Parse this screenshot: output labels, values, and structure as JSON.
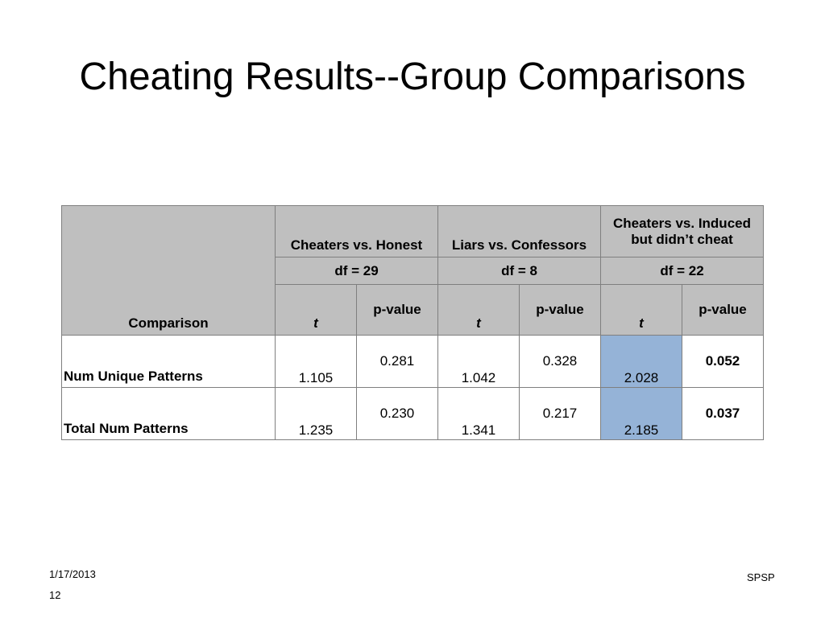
{
  "slide": {
    "title": "Cheating Results--Group Comparisons",
    "date": "1/17/2013",
    "page_number": "12",
    "footer_right": "SPSP"
  },
  "table": {
    "comparison_header": "Comparison",
    "groups": [
      {
        "label": "Cheaters vs. Honest",
        "df": "df = 29"
      },
      {
        "label": "Liars vs. Confessors",
        "df": "df = 8"
      },
      {
        "label": "Cheaters vs. Induced but didn’t cheat",
        "df": "df = 22"
      }
    ],
    "t_label": "t",
    "p_label": "p-value",
    "rows": [
      {
        "label": "Num Unique Patterns",
        "values": [
          "1.105",
          "0.281",
          "1.042",
          "0.328",
          "2.028",
          "0.052"
        ]
      },
      {
        "label": "Total Num Patterns",
        "values": [
          "1.235",
          "0.230",
          "1.341",
          "0.217",
          "2.185",
          "0.037"
        ]
      }
    ],
    "highlight_color": "#95b3d7",
    "header_color": "#bfbfbf"
  }
}
